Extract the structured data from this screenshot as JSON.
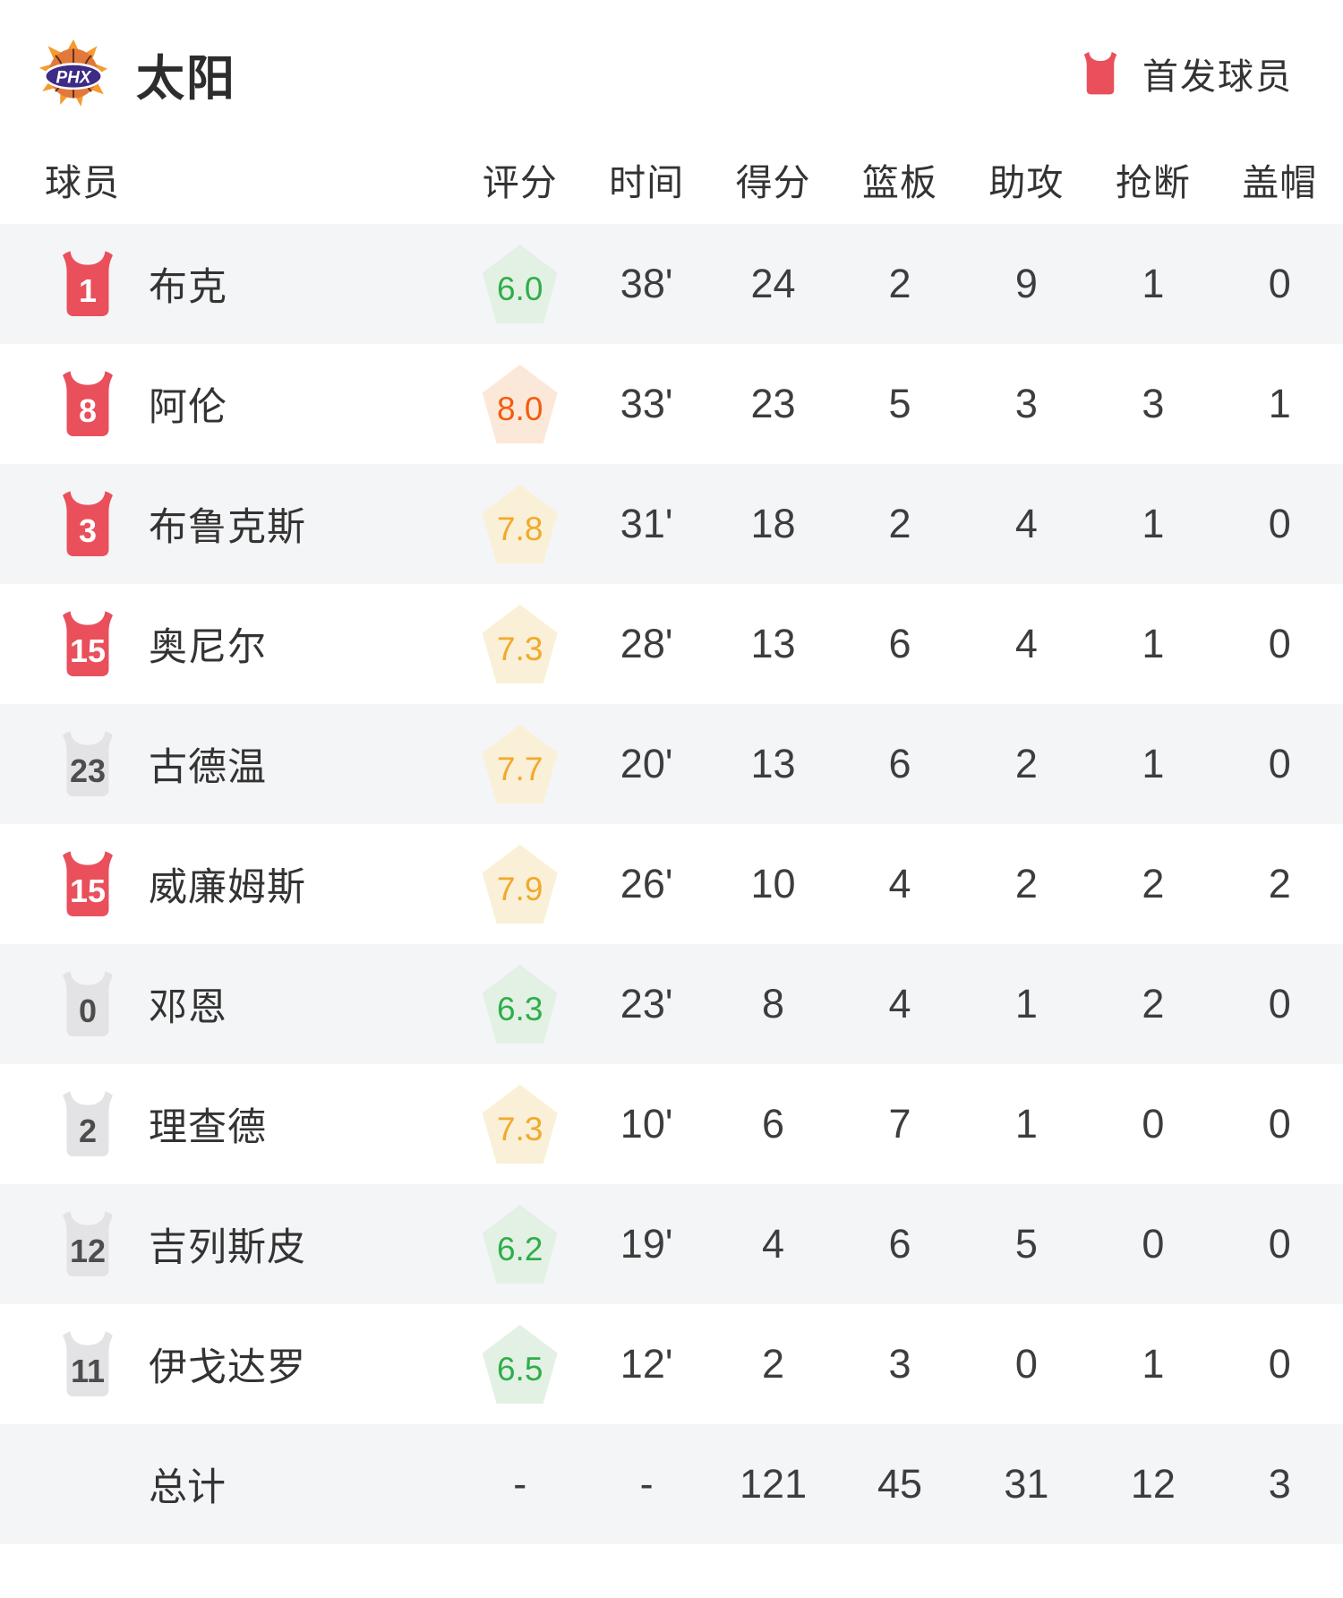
{
  "header": {
    "team_name": "太阳",
    "logo_text": "PHX",
    "legend_label": "首发球员"
  },
  "table": {
    "columns": [
      "球员",
      "评分",
      "时间",
      "得分",
      "篮板",
      "助攻",
      "抢断",
      "盖帽"
    ],
    "rows": [
      {
        "jersey_number": "1",
        "starter": true,
        "name": "布克",
        "rating": "6.0",
        "rating_tier": "green",
        "time": "38'",
        "points": "24",
        "rebounds": "2",
        "assists": "9",
        "steals": "1",
        "blocks": "0"
      },
      {
        "jersey_number": "8",
        "starter": true,
        "name": "阿伦",
        "rating": "8.0",
        "rating_tier": "orange",
        "time": "33'",
        "points": "23",
        "rebounds": "5",
        "assists": "3",
        "steals": "3",
        "blocks": "1"
      },
      {
        "jersey_number": "3",
        "starter": true,
        "name": "布鲁克斯",
        "rating": "7.8",
        "rating_tier": "amber",
        "time": "31'",
        "points": "18",
        "rebounds": "2",
        "assists": "4",
        "steals": "1",
        "blocks": "0"
      },
      {
        "jersey_number": "15",
        "starter": true,
        "name": "奥尼尔",
        "rating": "7.3",
        "rating_tier": "amber",
        "time": "28'",
        "points": "13",
        "rebounds": "6",
        "assists": "4",
        "steals": "1",
        "blocks": "0"
      },
      {
        "jersey_number": "23",
        "starter": false,
        "name": "古德温",
        "rating": "7.7",
        "rating_tier": "amber",
        "time": "20'",
        "points": "13",
        "rebounds": "6",
        "assists": "2",
        "steals": "1",
        "blocks": "0"
      },
      {
        "jersey_number": "15",
        "starter": true,
        "name": "威廉姆斯",
        "rating": "7.9",
        "rating_tier": "amber",
        "time": "26'",
        "points": "10",
        "rebounds": "4",
        "assists": "2",
        "steals": "2",
        "blocks": "2"
      },
      {
        "jersey_number": "0",
        "starter": false,
        "name": "邓恩",
        "rating": "6.3",
        "rating_tier": "green",
        "time": "23'",
        "points": "8",
        "rebounds": "4",
        "assists": "1",
        "steals": "2",
        "blocks": "0"
      },
      {
        "jersey_number": "2",
        "starter": false,
        "name": "理查德",
        "rating": "7.3",
        "rating_tier": "amber",
        "time": "10'",
        "points": "6",
        "rebounds": "7",
        "assists": "1",
        "steals": "0",
        "blocks": "0"
      },
      {
        "jersey_number": "12",
        "starter": false,
        "name": "吉列斯皮",
        "rating": "6.2",
        "rating_tier": "green",
        "time": "19'",
        "points": "4",
        "rebounds": "6",
        "assists": "5",
        "steals": "0",
        "blocks": "0"
      },
      {
        "jersey_number": "11",
        "starter": false,
        "name": "伊戈达罗",
        "rating": "6.5",
        "rating_tier": "green",
        "time": "12'",
        "points": "2",
        "rebounds": "3",
        "assists": "0",
        "steals": "1",
        "blocks": "0"
      }
    ],
    "total_row": {
      "label": "总计",
      "rating": "-",
      "time": "-",
      "points": "121",
      "rebounds": "45",
      "assists": "31",
      "steals": "12",
      "blocks": "3"
    }
  },
  "colors": {
    "starter_jersey": "#ea4f5c",
    "bench_jersey": "#e3e3e5",
    "row_alt_bg": "#f4f5f7",
    "rating_green": "#2fae49",
    "rating_green_bg": "#e3f1e5",
    "rating_amber": "#f2a92b",
    "rating_amber_bg": "#f9f0d7",
    "rating_orange": "#f35c0e",
    "rating_orange_bg": "#fce8d9"
  }
}
